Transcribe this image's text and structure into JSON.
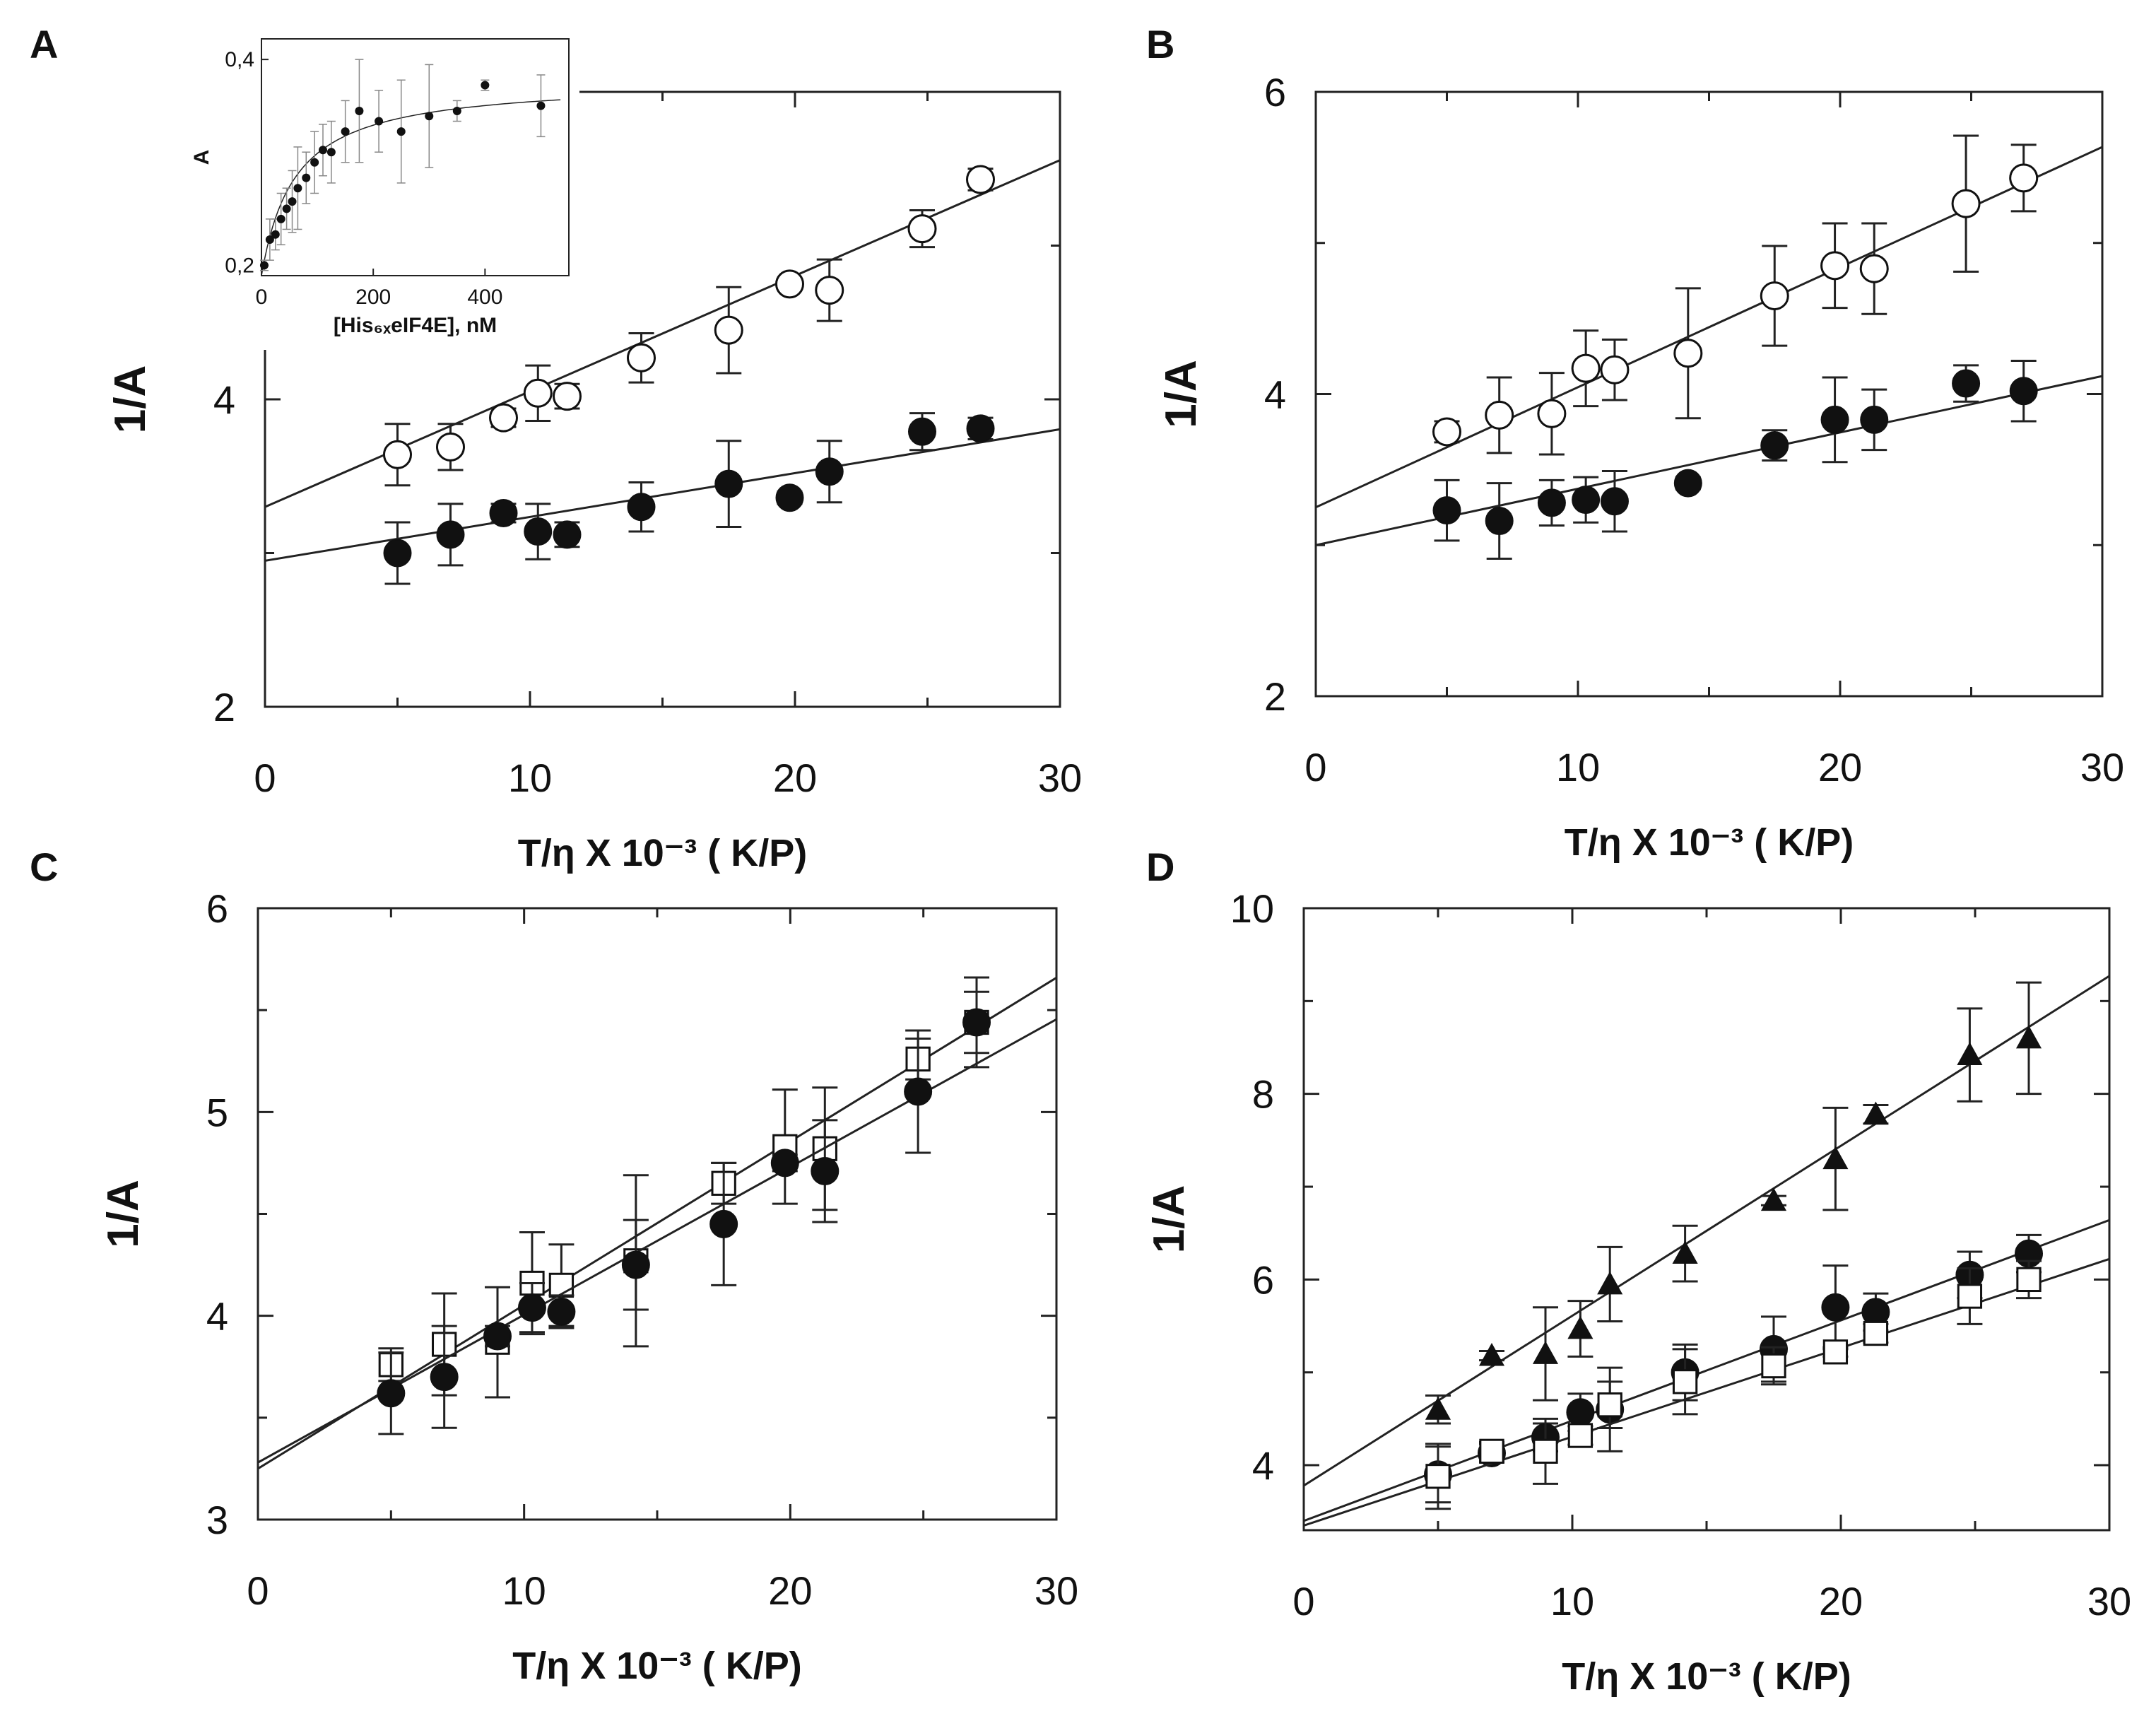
{
  "figure": {
    "letters": [
      "A",
      "B",
      "C",
      "D"
    ]
  },
  "chart_data": [
    {
      "panel": "A",
      "type": "scatter",
      "xlabel": "T/η X 10⁻³  ( K/P)",
      "ylabel": "1/A",
      "xlim": [
        0,
        30
      ],
      "ylim": [
        2,
        6
      ],
      "xticks": [
        0,
        10,
        20,
        30
      ],
      "yticks": [
        2,
        4
      ],
      "series": [
        {
          "name": "open circles",
          "marker": "open-circle",
          "x": [
            5,
            7,
            9,
            10.3,
            11.4,
            14.2,
            17.5,
            19.8,
            21.3,
            24.8,
            27
          ],
          "y": [
            3.64,
            3.69,
            3.88,
            4.04,
            4.02,
            4.27,
            4.45,
            4.75,
            4.71,
            5.11,
            5.43
          ],
          "err": [
            0.2,
            0.15,
            0.06,
            0.18,
            0.08,
            0.16,
            0.28,
            0.04,
            0.2,
            0.12,
            0.07
          ],
          "fit": [
            3.3,
            0.0752
          ]
        },
        {
          "name": "filled circles",
          "marker": "filled-circle",
          "x": [
            5,
            7,
            9,
            10.3,
            11.4,
            14.2,
            17.5,
            19.8,
            21.3,
            24.8,
            27
          ],
          "y": [
            3.0,
            3.12,
            3.26,
            3.14,
            3.12,
            3.3,
            3.45,
            3.36,
            3.53,
            3.79,
            3.81
          ],
          "err": [
            0.2,
            0.2,
            0.06,
            0.18,
            0.08,
            0.16,
            0.28,
            0.04,
            0.2,
            0.12,
            0.07
          ],
          "fit": [
            2.95,
            0.0285
          ]
        }
      ],
      "inset": {
        "type": "scatter",
        "xlabel": "[His₆ₓeIF4E], nM",
        "ylabel": "A",
        "xlim": [
          0,
          550
        ],
        "ylim": [
          0.19,
          0.42
        ],
        "xticks": [
          0,
          200,
          400
        ],
        "yticks": [
          0.2,
          0.4
        ],
        "xtick_labels": [
          "0",
          "200",
          "400"
        ],
        "ytick_labels": [
          "0,2",
          "0,4"
        ],
        "x": [
          5,
          15,
          25,
          35,
          45,
          55,
          65,
          80,
          95,
          110,
          125,
          150,
          175,
          210,
          250,
          300,
          350,
          400,
          500
        ],
        "y": [
          0.2,
          0.225,
          0.23,
          0.245,
          0.255,
          0.262,
          0.275,
          0.285,
          0.3,
          0.312,
          0.31,
          0.33,
          0.35,
          0.34,
          0.33,
          0.345,
          0.35,
          0.375,
          0.355
        ],
        "err": [
          0.005,
          0.02,
          0.015,
          0.025,
          0.02,
          0.03,
          0.04,
          0.025,
          0.03,
          0.025,
          0.03,
          0.03,
          0.05,
          0.03,
          0.05,
          0.05,
          0.01,
          0.005,
          0.03
        ],
        "fit": {
          "a0": 0.19,
          "amax": 0.19,
          "kd": 60
        }
      }
    },
    {
      "panel": "B",
      "type": "scatter",
      "xlabel": "T/η X 10⁻³  ( K/P)",
      "ylabel": "1/A",
      "xlim": [
        0,
        30
      ],
      "ylim": [
        2,
        6
      ],
      "xticks": [
        0,
        10,
        20,
        30
      ],
      "yticks": [
        2,
        4,
        6
      ],
      "series": [
        {
          "name": "open circles",
          "marker": "open-circle",
          "x": [
            5,
            7,
            9,
            10.3,
            11.4,
            14.2,
            17.5,
            19.8,
            21.3,
            24.8,
            27
          ],
          "y": [
            3.75,
            3.86,
            3.87,
            4.17,
            4.16,
            4.27,
            4.65,
            4.85,
            4.83,
            5.26,
            5.43
          ],
          "err": [
            0.07,
            0.25,
            0.27,
            0.25,
            0.2,
            0.43,
            0.33,
            0.28,
            0.3,
            0.45,
            0.22
          ],
          "fit": [
            3.25,
            0.0795
          ]
        },
        {
          "name": "filled circles",
          "marker": "filled-circle",
          "x": [
            5,
            7,
            9,
            10.3,
            11.4,
            14.2,
            17.5,
            19.8,
            21.3,
            24.8,
            27
          ],
          "y": [
            3.23,
            3.16,
            3.28,
            3.3,
            3.29,
            3.41,
            3.66,
            3.83,
            3.83,
            4.07,
            4.02
          ],
          "err": [
            0.2,
            0.25,
            0.15,
            0.15,
            0.2,
            0.04,
            0.1,
            0.28,
            0.2,
            0.12,
            0.2
          ],
          "fit": [
            3.0,
            0.0373
          ]
        }
      ]
    },
    {
      "panel": "C",
      "type": "scatter",
      "xlabel": "T/η X 10⁻³  ( K/P)",
      "ylabel": "1/A",
      "xlim": [
        0,
        30
      ],
      "ylim": [
        3,
        6
      ],
      "xticks": [
        0,
        10,
        20,
        30
      ],
      "yticks": [
        3,
        4,
        5,
        6
      ],
      "series": [
        {
          "name": "open squares",
          "marker": "open-square",
          "x": [
            5,
            7,
            9,
            10.3,
            11.4,
            14.2,
            17.5,
            19.8,
            21.3,
            24.8,
            27
          ],
          "y": [
            3.76,
            3.86,
            3.87,
            4.16,
            4.15,
            4.27,
            4.65,
            4.83,
            4.82,
            5.26,
            5.44
          ],
          "err": [
            0.08,
            0.25,
            0.27,
            0.25,
            0.2,
            0.42,
            0.1,
            0.28,
            0.3,
            0.1,
            0.22
          ],
          "fit": [
            3.25,
            0.0803
          ]
        },
        {
          "name": "filled circles",
          "marker": "filled-circle",
          "x": [
            5,
            7,
            9,
            10.3,
            11.4,
            14.2,
            17.5,
            19.8,
            21.3,
            24.8,
            27
          ],
          "y": [
            3.62,
            3.7,
            3.9,
            4.04,
            4.02,
            4.25,
            4.45,
            4.75,
            4.71,
            5.1,
            5.44
          ],
          "err": [
            0.2,
            0.25,
            0.05,
            0.12,
            0.08,
            0.22,
            0.3,
            0.04,
            0.25,
            0.3,
            0.15
          ],
          "fit": [
            3.28,
            0.0725
          ]
        }
      ]
    },
    {
      "panel": "D",
      "type": "scatter",
      "xlabel": "T/η X 10⁻³  ( K/P)",
      "ylabel": "1/A",
      "xlim": [
        0,
        30
      ],
      "ylim": [
        3.3,
        10
      ],
      "xticks": [
        0,
        10,
        20,
        30
      ],
      "yticks": [
        4,
        6,
        8,
        10
      ],
      "series": [
        {
          "name": "filled triangles",
          "marker": "filled-triangle",
          "x": [
            5,
            7,
            9,
            10.3,
            11.4,
            14.2,
            17.5,
            19.8,
            21.3,
            24.8,
            27
          ],
          "y": [
            4.6,
            5.18,
            5.2,
            5.47,
            5.95,
            6.28,
            6.85,
            7.3,
            7.78,
            8.42,
            8.6
          ],
          "err": [
            0.15,
            0.05,
            0.5,
            0.3,
            0.4,
            0.3,
            0.05,
            0.55,
            0.1,
            0.5,
            0.6
          ],
          "fit": [
            3.78,
            0.183
          ]
        },
        {
          "name": "filled circles",
          "marker": "filled-circle",
          "x": [
            5,
            7,
            9,
            10.3,
            11.4,
            14.2,
            17.5,
            19.8,
            21.3,
            24.8,
            27
          ],
          "y": [
            3.9,
            4.13,
            4.3,
            4.57,
            4.6,
            5.0,
            5.25,
            5.7,
            5.65,
            6.05,
            6.28
          ],
          "err": [
            0.3,
            0.1,
            0.15,
            0.2,
            0.45,
            0.3,
            0.35,
            0.45,
            0.2,
            0.25,
            0.2
          ],
          "fit": [
            3.4,
            0.108
          ]
        },
        {
          "name": "open squares",
          "marker": "open-square",
          "x": [
            5,
            7,
            9,
            10.3,
            11.4,
            14.2,
            17.5,
            19.8,
            21.3,
            24.8,
            27
          ],
          "y": [
            3.88,
            4.15,
            4.15,
            4.32,
            4.65,
            4.9,
            5.07,
            5.22,
            5.42,
            5.82,
            6.0
          ],
          "err": [
            0.35,
            0.1,
            0.35,
            0.1,
            0.25,
            0.35,
            0.2,
            0.05,
            0.1,
            0.3,
            0.2
          ],
          "fit": [
            3.35,
            0.0957
          ]
        }
      ]
    }
  ]
}
